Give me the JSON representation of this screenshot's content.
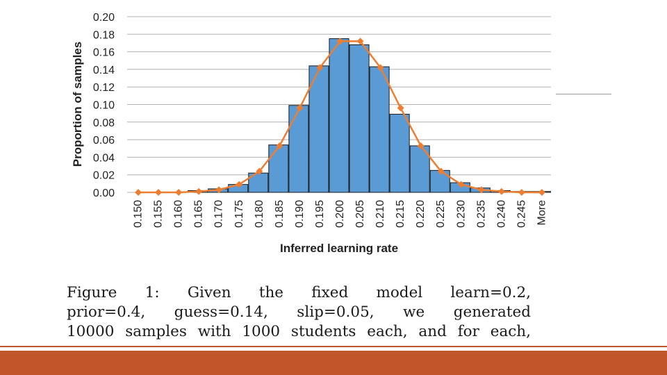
{
  "chart_data": {
    "type": "bar",
    "title": "",
    "xlabel": "Inferred learning rate",
    "ylabel": "Proportion of samples",
    "ylim": [
      0,
      0.2
    ],
    "yticks": [
      "0.00",
      "0.02",
      "0.04",
      "0.06",
      "0.08",
      "0.10",
      "0.12",
      "0.14",
      "0.16",
      "0.18",
      "0.20"
    ],
    "categories": [
      "0.150",
      "0.155",
      "0.160",
      "0.165",
      "0.170",
      "0.175",
      "0.180",
      "0.185",
      "0.190",
      "0.195",
      "0.200",
      "0.205",
      "0.210",
      "0.215",
      "0.220",
      "0.225",
      "0.230",
      "0.235",
      "0.240",
      "0.245",
      "More"
    ],
    "grid": true,
    "series": [
      {
        "kind": "bar",
        "values": [
          0.0,
          0.0,
          0.0,
          0.002,
          0.004,
          0.009,
          0.022,
          0.054,
          0.099,
          0.144,
          0.175,
          0.168,
          0.143,
          0.089,
          0.053,
          0.025,
          0.011,
          0.005,
          0.002,
          0.001,
          0.001
        ]
      },
      {
        "kind": "line",
        "values": [
          0.0,
          0.0,
          0.0,
          0.001,
          0.003,
          0.009,
          0.024,
          0.053,
          0.096,
          0.142,
          0.172,
          0.172,
          0.142,
          0.096,
          0.053,
          0.024,
          0.009,
          0.003,
          0.001,
          0.0,
          0.0
        ]
      }
    ]
  },
  "caption": {
    "lines": [
      "Figure 1:  Given the fixed model learn=0.2,",
      "prior=0.4, guess=0.14, slip=0.05, we generated",
      "10000 samples with 1000 students each, and for each,"
    ]
  },
  "colors": {
    "bar_fill": "#5b9bd5",
    "bar_stroke": "#1a1a1a",
    "line": "#ed7d31",
    "grid": "#b0b0b0",
    "footer": "#c0562a"
  }
}
